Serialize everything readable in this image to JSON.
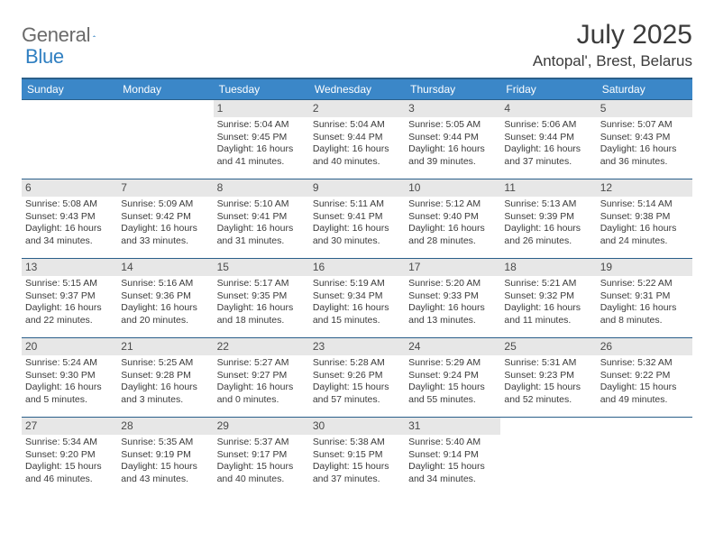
{
  "logo": {
    "word1": "General",
    "word2": "Blue",
    "shape_color": "#2f7fc1"
  },
  "title": "July 2025",
  "location": "Antopal', Brest, Belarus",
  "header_bg": "#3b87c8",
  "border_color": "#2a5f8a",
  "daynum_bg": "#e7e7e7",
  "weekdays": [
    "Sunday",
    "Monday",
    "Tuesday",
    "Wednesday",
    "Thursday",
    "Friday",
    "Saturday"
  ],
  "first_weekday_index": 2,
  "days": [
    {
      "n": 1,
      "sunrise": "5:04 AM",
      "sunset": "9:45 PM",
      "daylight": "16 hours and 41 minutes."
    },
    {
      "n": 2,
      "sunrise": "5:04 AM",
      "sunset": "9:44 PM",
      "daylight": "16 hours and 40 minutes."
    },
    {
      "n": 3,
      "sunrise": "5:05 AM",
      "sunset": "9:44 PM",
      "daylight": "16 hours and 39 minutes."
    },
    {
      "n": 4,
      "sunrise": "5:06 AM",
      "sunset": "9:44 PM",
      "daylight": "16 hours and 37 minutes."
    },
    {
      "n": 5,
      "sunrise": "5:07 AM",
      "sunset": "9:43 PM",
      "daylight": "16 hours and 36 minutes."
    },
    {
      "n": 6,
      "sunrise": "5:08 AM",
      "sunset": "9:43 PM",
      "daylight": "16 hours and 34 minutes."
    },
    {
      "n": 7,
      "sunrise": "5:09 AM",
      "sunset": "9:42 PM",
      "daylight": "16 hours and 33 minutes."
    },
    {
      "n": 8,
      "sunrise": "5:10 AM",
      "sunset": "9:41 PM",
      "daylight": "16 hours and 31 minutes."
    },
    {
      "n": 9,
      "sunrise": "5:11 AM",
      "sunset": "9:41 PM",
      "daylight": "16 hours and 30 minutes."
    },
    {
      "n": 10,
      "sunrise": "5:12 AM",
      "sunset": "9:40 PM",
      "daylight": "16 hours and 28 minutes."
    },
    {
      "n": 11,
      "sunrise": "5:13 AM",
      "sunset": "9:39 PM",
      "daylight": "16 hours and 26 minutes."
    },
    {
      "n": 12,
      "sunrise": "5:14 AM",
      "sunset": "9:38 PM",
      "daylight": "16 hours and 24 minutes."
    },
    {
      "n": 13,
      "sunrise": "5:15 AM",
      "sunset": "9:37 PM",
      "daylight": "16 hours and 22 minutes."
    },
    {
      "n": 14,
      "sunrise": "5:16 AM",
      "sunset": "9:36 PM",
      "daylight": "16 hours and 20 minutes."
    },
    {
      "n": 15,
      "sunrise": "5:17 AM",
      "sunset": "9:35 PM",
      "daylight": "16 hours and 18 minutes."
    },
    {
      "n": 16,
      "sunrise": "5:19 AM",
      "sunset": "9:34 PM",
      "daylight": "16 hours and 15 minutes."
    },
    {
      "n": 17,
      "sunrise": "5:20 AM",
      "sunset": "9:33 PM",
      "daylight": "16 hours and 13 minutes."
    },
    {
      "n": 18,
      "sunrise": "5:21 AM",
      "sunset": "9:32 PM",
      "daylight": "16 hours and 11 minutes."
    },
    {
      "n": 19,
      "sunrise": "5:22 AM",
      "sunset": "9:31 PM",
      "daylight": "16 hours and 8 minutes."
    },
    {
      "n": 20,
      "sunrise": "5:24 AM",
      "sunset": "9:30 PM",
      "daylight": "16 hours and 5 minutes."
    },
    {
      "n": 21,
      "sunrise": "5:25 AM",
      "sunset": "9:28 PM",
      "daylight": "16 hours and 3 minutes."
    },
    {
      "n": 22,
      "sunrise": "5:27 AM",
      "sunset": "9:27 PM",
      "daylight": "16 hours and 0 minutes."
    },
    {
      "n": 23,
      "sunrise": "5:28 AM",
      "sunset": "9:26 PM",
      "daylight": "15 hours and 57 minutes."
    },
    {
      "n": 24,
      "sunrise": "5:29 AM",
      "sunset": "9:24 PM",
      "daylight": "15 hours and 55 minutes."
    },
    {
      "n": 25,
      "sunrise": "5:31 AM",
      "sunset": "9:23 PM",
      "daylight": "15 hours and 52 minutes."
    },
    {
      "n": 26,
      "sunrise": "5:32 AM",
      "sunset": "9:22 PM",
      "daylight": "15 hours and 49 minutes."
    },
    {
      "n": 27,
      "sunrise": "5:34 AM",
      "sunset": "9:20 PM",
      "daylight": "15 hours and 46 minutes."
    },
    {
      "n": 28,
      "sunrise": "5:35 AM",
      "sunset": "9:19 PM",
      "daylight": "15 hours and 43 minutes."
    },
    {
      "n": 29,
      "sunrise": "5:37 AM",
      "sunset": "9:17 PM",
      "daylight": "15 hours and 40 minutes."
    },
    {
      "n": 30,
      "sunrise": "5:38 AM",
      "sunset": "9:15 PM",
      "daylight": "15 hours and 37 minutes."
    },
    {
      "n": 31,
      "sunrise": "5:40 AM",
      "sunset": "9:14 PM",
      "daylight": "15 hours and 34 minutes."
    }
  ],
  "labels": {
    "sunrise": "Sunrise:",
    "sunset": "Sunset:",
    "daylight": "Daylight:"
  }
}
